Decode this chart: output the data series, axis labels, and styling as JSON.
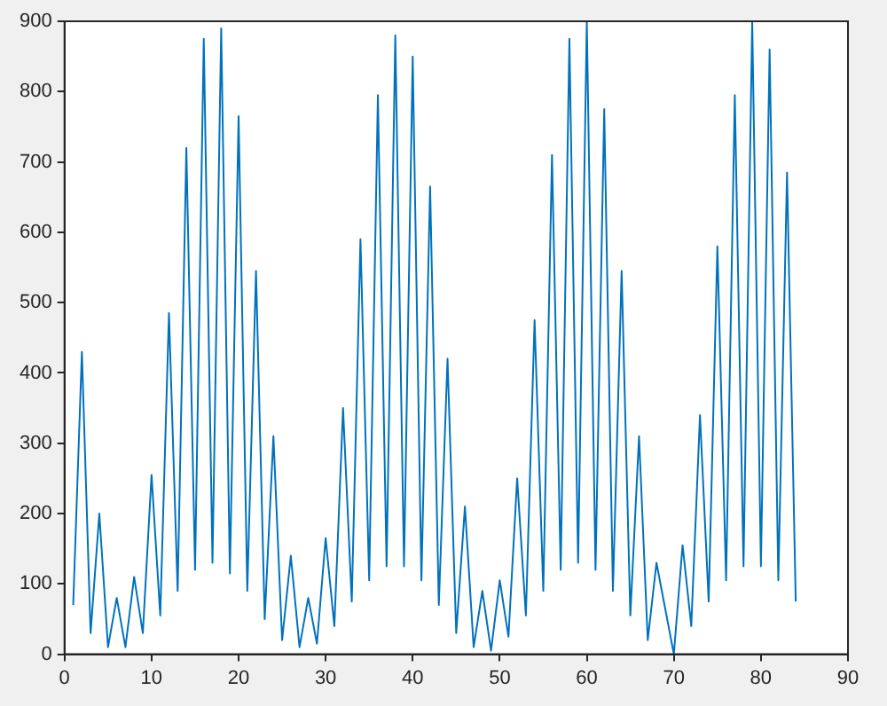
{
  "chart_data": {
    "type": "line",
    "x": [
      1,
      2,
      3,
      4,
      5,
      6,
      7,
      8,
      9,
      10,
      11,
      12,
      13,
      14,
      15,
      16,
      17,
      18,
      19,
      20,
      21,
      22,
      23,
      24,
      25,
      26,
      27,
      28,
      29,
      30,
      31,
      32,
      33,
      34,
      35,
      36,
      37,
      38,
      39,
      40,
      41,
      42,
      43,
      44,
      45,
      46,
      47,
      48,
      49,
      50,
      51,
      52,
      53,
      54,
      55,
      56,
      57,
      58,
      59,
      60,
      61,
      62,
      63,
      64,
      65,
      66,
      67,
      68,
      69,
      70,
      71,
      72,
      73,
      74,
      75,
      76,
      77,
      78,
      79,
      80,
      81,
      82,
      83,
      84
    ],
    "series": [
      {
        "color": "#0072bd",
        "values": [
          70,
          430,
          30,
          200,
          10,
          80,
          10,
          110,
          30,
          255,
          55,
          485,
          90,
          720,
          120,
          875,
          130,
          890,
          115,
          765,
          90,
          545,
          50,
          310,
          20,
          140,
          10,
          80,
          15,
          165,
          40,
          350,
          75,
          590,
          105,
          795,
          125,
          880,
          125,
          850,
          105,
          665,
          70,
          420,
          30,
          210,
          10,
          90,
          5,
          105,
          25,
          250,
          55,
          475,
          90,
          710,
          120,
          875,
          130,
          900,
          120,
          775,
          90,
          545,
          55,
          310,
          20,
          130,
          65,
          0,
          155,
          40,
          340,
          75,
          580,
          105,
          795,
          125,
          900,
          125,
          860,
          105,
          685,
          75
        ]
      }
    ],
    "xlim": [
      0,
      90
    ],
    "xticks": [
      0,
      10,
      20,
      30,
      40,
      50,
      60,
      70,
      80,
      90
    ],
    "ylim": [
      0,
      900
    ],
    "yticks": [
      0,
      100,
      200,
      300,
      400,
      500,
      600,
      700,
      800,
      900
    ],
    "grid": false,
    "legend": false,
    "marker": "none",
    "line_style": "solid"
  }
}
